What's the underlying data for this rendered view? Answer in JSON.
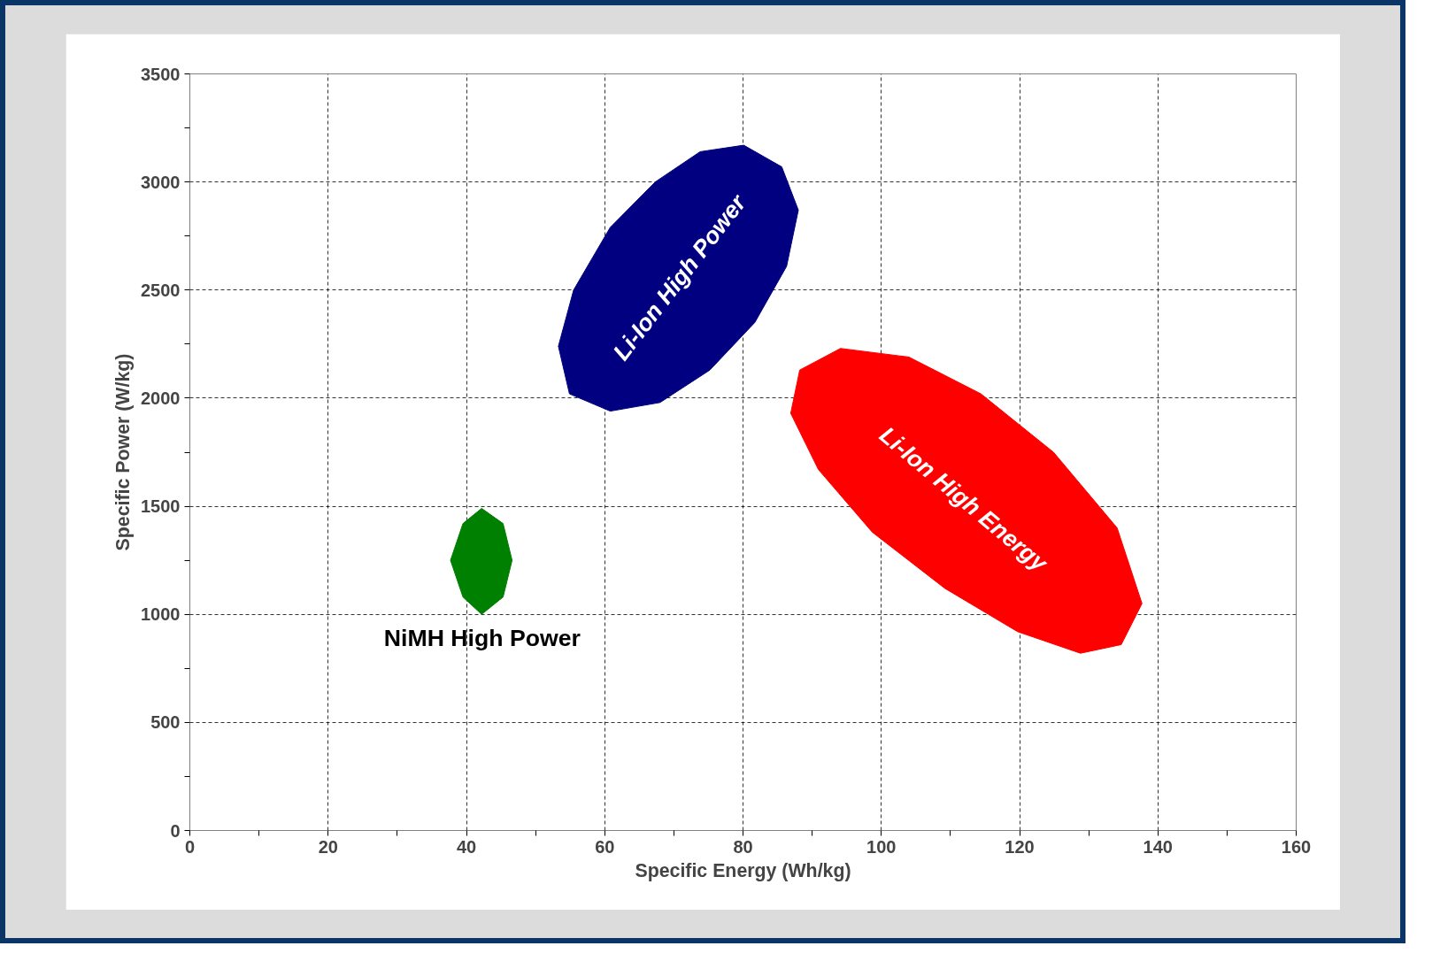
{
  "chart_data": {
    "type": "area",
    "xlabel": "Specific Energy (Wh/kg)",
    "ylabel": "Specific Power (W/kg)",
    "xlim": [
      0,
      160
    ],
    "ylim": [
      0,
      3500
    ],
    "xticks": [
      0,
      {
        "value": 10,
        "label": null
      },
      20,
      {
        "value": 30,
        "label": null
      },
      40,
      {
        "value": 50,
        "label": null
      },
      60,
      {
        "value": 70,
        "label": null
      },
      80,
      {
        "value": 90,
        "label": null
      },
      100,
      {
        "value": 110,
        "label": null
      },
      120,
      {
        "value": 130,
        "label": null
      },
      140,
      {
        "value": 150,
        "label": null
      },
      160
    ],
    "yticks": [
      0,
      {
        "value": 250,
        "label": null
      },
      500,
      {
        "value": 750,
        "label": null
      },
      1000,
      {
        "value": 1250,
        "label": null
      },
      1500,
      {
        "value": 1750,
        "label": null
      },
      2000,
      {
        "value": 2250,
        "label": null
      },
      2500,
      {
        "value": 2750,
        "label": null
      },
      3000,
      {
        "value": 3250,
        "label": null
      },
      3500
    ],
    "grid": true,
    "line_style": "dashed",
    "series": [
      {
        "name": "Li-Ion High Power",
        "color": "#000080",
        "x": [
          80.1,
          85.6,
          88.0,
          86.3,
          81.7,
          75.2,
          68.0,
          60.8,
          54.9,
          53.3,
          55.5,
          60.8,
          67.3,
          73.8
        ],
        "values": [
          3170,
          3070,
          2870,
          2610,
          2350,
          2130,
          1980,
          1940,
          2020,
          2240,
          2500,
          2790,
          3000,
          3140
        ]
      },
      {
        "name": "Li-Ion High Energy",
        "color": "#ff0000",
        "x": [
          94.1,
          104.0,
          114.4,
          124.9,
          134.1,
          137.7,
          134.7,
          128.8,
          119.7,
          109.2,
          98.7,
          90.9,
          86.9,
          88.2
        ],
        "values": [
          2230,
          2190,
          2020,
          1750,
          1400,
          1050,
          860,
          820,
          920,
          1120,
          1380,
          1670,
          1930,
          2130
        ]
      },
      {
        "name": "NiMH High Power",
        "color": "#008000",
        "x": [
          42.2,
          45.3,
          46.6,
          45.3,
          42.2,
          39.5,
          37.7,
          39.5
        ],
        "values": [
          1490,
          1420,
          1250,
          1080,
          1000,
          1080,
          1250,
          1420
        ]
      }
    ]
  }
}
